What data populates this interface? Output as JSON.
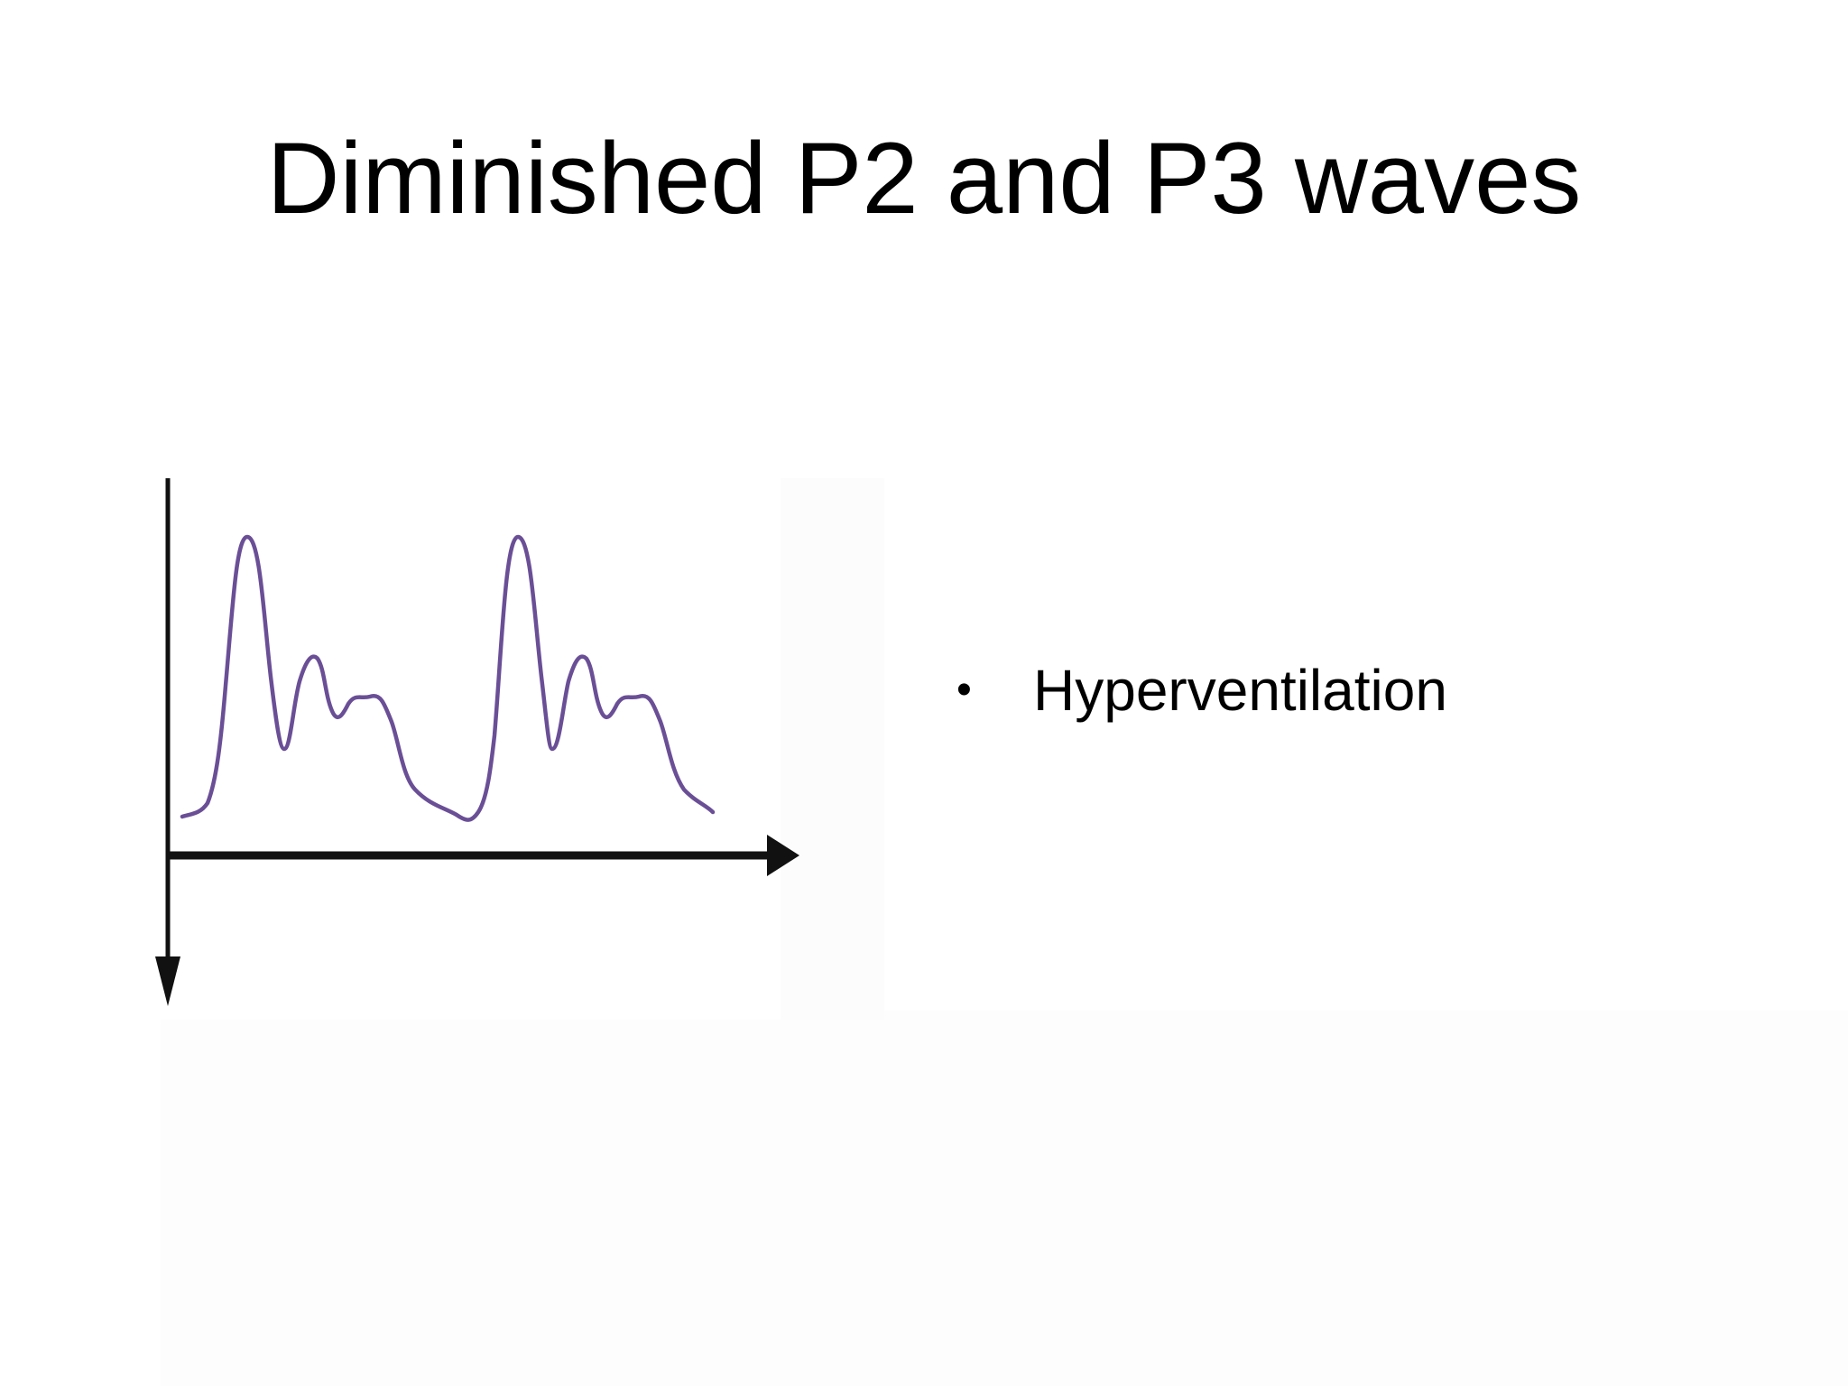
{
  "slide": {
    "title": "Diminished P2 and P3 waves",
    "bullets": [
      {
        "marker": "•",
        "text": "Hyperventilation"
      }
    ],
    "figure": {
      "type": "pulse-waveform",
      "description_icon": "waveform-icon",
      "line_color": "#6a4f96",
      "axis_color": "#111111"
    }
  }
}
